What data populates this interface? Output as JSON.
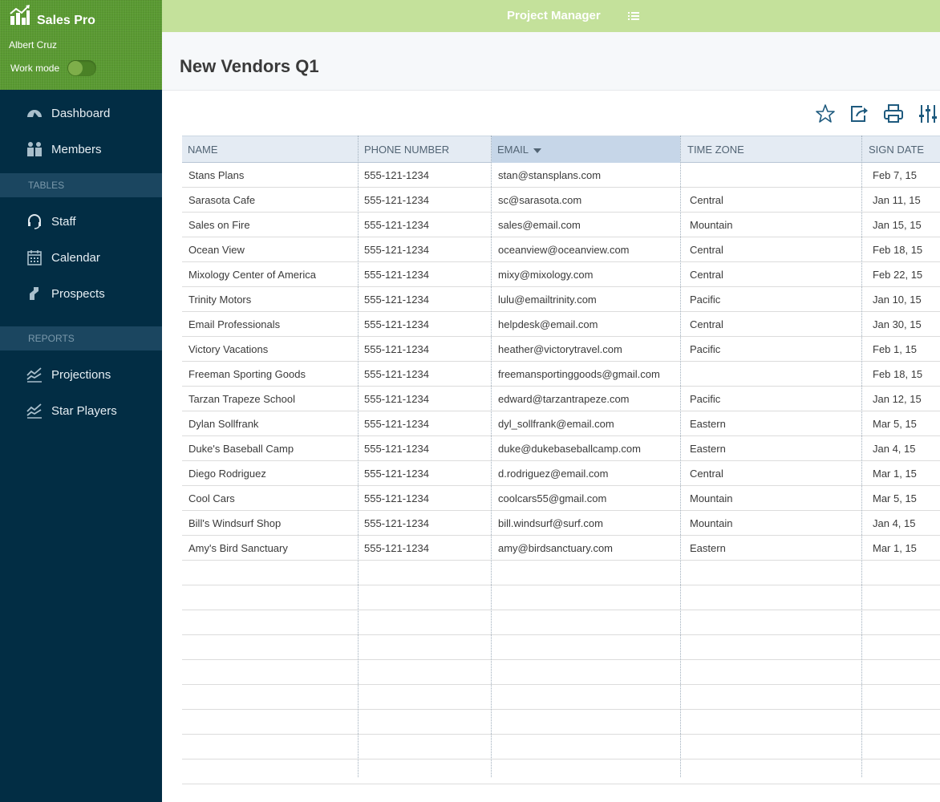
{
  "app": {
    "name": "Sales Pro",
    "user": "Albert Cruz",
    "work_mode_label": "Work mode"
  },
  "topbar": {
    "title": "Project Manager"
  },
  "sidebar": {
    "items": [
      {
        "label": "Dashboard",
        "icon": "dashboard-icon"
      },
      {
        "label": "Members",
        "icon": "members-icon"
      }
    ],
    "tables_header": "TABLES",
    "tables": [
      {
        "label": "Staff",
        "icon": "headset-icon"
      },
      {
        "label": "Calendar",
        "icon": "calendar-icon"
      },
      {
        "label": "Prospects",
        "icon": "prospects-icon"
      }
    ],
    "reports_header": "REPORTS",
    "reports": [
      {
        "label": "Projections",
        "icon": "chart-icon"
      },
      {
        "label": "Star Players",
        "icon": "chart-icon"
      }
    ]
  },
  "page": {
    "title": "New Vendors Q1"
  },
  "toolbar": {
    "icons": [
      "star-icon",
      "export-icon",
      "print-icon",
      "settings-sliders-icon"
    ]
  },
  "table": {
    "columns": [
      "NAME",
      "PHONE NUMBER",
      "EMAIL",
      "TIME ZONE",
      "SIGN DATE"
    ],
    "sorted_column": "EMAIL",
    "rows": [
      [
        "Stans Plans",
        "555-121-1234",
        "stan@stansplans.com",
        "",
        "Feb 7, 15"
      ],
      [
        "Sarasota Cafe",
        "555-121-1234",
        "sc@sarasota.com",
        "Central",
        "Jan 11, 15"
      ],
      [
        "Sales on Fire",
        "555-121-1234",
        "sales@email.com",
        "Mountain",
        "Jan 15, 15"
      ],
      [
        "Ocean View",
        "555-121-1234",
        "oceanview@oceanview.com",
        "Central",
        "Feb 18, 15"
      ],
      [
        "Mixology Center of America",
        "555-121-1234",
        "mixy@mixology.com",
        "Central",
        "Feb 22, 15"
      ],
      [
        "Trinity Motors",
        "555-121-1234",
        "lulu@emailtrinity.com",
        "Pacific",
        "Jan 10, 15"
      ],
      [
        "Email Professionals",
        "555-121-1234",
        "helpdesk@email.com",
        "Central",
        "Jan 30, 15"
      ],
      [
        "Victory Vacations",
        "555-121-1234",
        "heather@victorytravel.com",
        "Pacific",
        "Feb 1, 15"
      ],
      [
        "Freeman Sporting Goods",
        "555-121-1234",
        "freemansportinggoods@gmail.com",
        "",
        "Feb 18, 15"
      ],
      [
        "Tarzan Trapeze School",
        "555-121-1234",
        "edward@tarzantrapeze.com",
        "Pacific",
        "Jan 12, 15"
      ],
      [
        "Dylan Sollfrank",
        "555-121-1234",
        "dyl_sollfrank@email.com",
        "Eastern",
        "Mar 5, 15"
      ],
      [
        "Duke's Baseball Camp",
        "555-121-1234",
        "duke@dukebaseballcamp.com",
        "Eastern",
        "Jan 4, 15"
      ],
      [
        "Diego Rodriguez",
        "555-121-1234",
        "d.rodriguez@email.com",
        "Central",
        "Mar 1, 15"
      ],
      [
        "Cool Cars",
        "555-121-1234",
        "coolcars55@gmail.com",
        "Mountain",
        "Mar 5, 15"
      ],
      [
        "Bill's Windsurf Shop",
        "555-121-1234",
        "bill.windsurf@surf.com",
        "Mountain",
        "Jan 4, 15"
      ],
      [
        "Amy's Bird Sanctuary",
        "555-121-1234",
        "amy@birdsanctuary.com",
        "Eastern",
        "Mar 1, 15"
      ]
    ]
  },
  "colors": {
    "sidebar_bg": "#022d44",
    "brand_green": "#5a9a32",
    "topbar_green": "#c4e19b",
    "header_bg": "#e4ebf3",
    "sorted_header_bg": "#c6d6e8"
  }
}
